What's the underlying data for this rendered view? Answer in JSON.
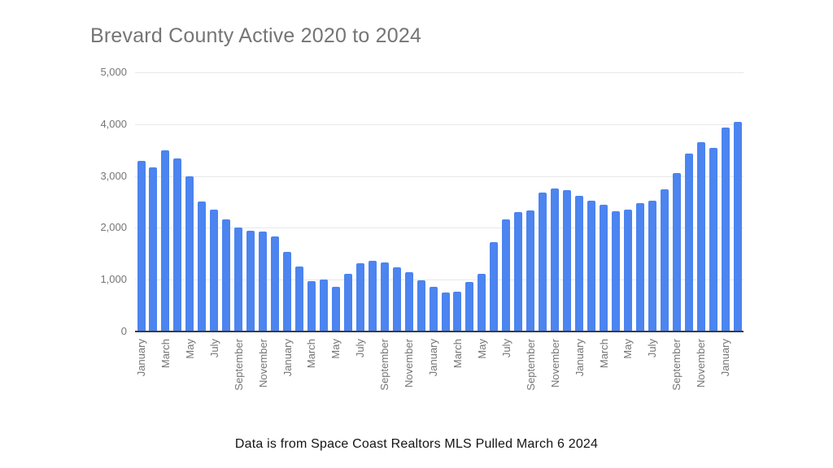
{
  "page": {
    "background": "#ffffff"
  },
  "chart": {
    "title": "Brevard County Active 2020 to 2024",
    "title_color": "#757575",
    "bar_color": "#4c84f0",
    "gridline_color": "#e8e8e8",
    "axis_line_color": "#3d3d3d",
    "tick_label_color": "#757575"
  },
  "footer": {
    "text": "Data is from Space Coast Realtors MLS Pulled March 6 2024"
  },
  "chart_data": {
    "type": "bar",
    "title": "Brevard County Active 2020 to 2024",
    "xlabel": "",
    "ylabel": "",
    "ylim": [
      0,
      5000
    ],
    "grid": "horizontal",
    "legend": "none",
    "bar_color": "#4c84f0",
    "yticks": [
      {
        "value": 0,
        "label": "0"
      },
      {
        "value": 1000,
        "label": "1,000"
      },
      {
        "value": 2000,
        "label": "2,000"
      },
      {
        "value": 3000,
        "label": "3,000"
      },
      {
        "value": 4000,
        "label": "4,000"
      },
      {
        "value": 5000,
        "label": "5,000"
      }
    ],
    "xtick_every_n_months": 2,
    "x": [
      "January 2020",
      "February 2020",
      "March 2020",
      "April 2020",
      "May 2020",
      "June 2020",
      "July 2020",
      "August 2020",
      "September 2020",
      "October 2020",
      "November 2020",
      "December 2020",
      "January 2021",
      "February 2021",
      "March 2021",
      "April 2021",
      "May 2021",
      "June 2021",
      "July 2021",
      "August 2021",
      "September 2021",
      "October 2021",
      "November 2021",
      "December 2021",
      "January 2022",
      "February 2022",
      "March 2022",
      "April 2022",
      "May 2022",
      "June 2022",
      "July 2022",
      "August 2022",
      "September 2022",
      "October 2022",
      "November 2022",
      "December 2022",
      "January 2023",
      "February 2023",
      "March 2023",
      "April 2023",
      "May 2023",
      "June 2023",
      "July 2023",
      "August 2023",
      "September 2023",
      "October 2023",
      "November 2023",
      "December 2023",
      "January 2024",
      "February 2024"
    ],
    "values": [
      3290,
      3170,
      3500,
      3340,
      3000,
      2510,
      2350,
      2160,
      2000,
      1950,
      1930,
      1840,
      1530,
      1250,
      970,
      1010,
      870,
      1115,
      1315,
      1360,
      1330,
      1240,
      1150,
      990,
      860,
      755,
      775,
      950,
      1120,
      1720,
      2170,
      2310,
      2340,
      2680,
      2760,
      2730,
      2620,
      2520,
      2450,
      2320,
      2350,
      2480,
      2530,
      2740,
      3050,
      3430,
      3650,
      3550,
      3930,
      4040
    ]
  }
}
